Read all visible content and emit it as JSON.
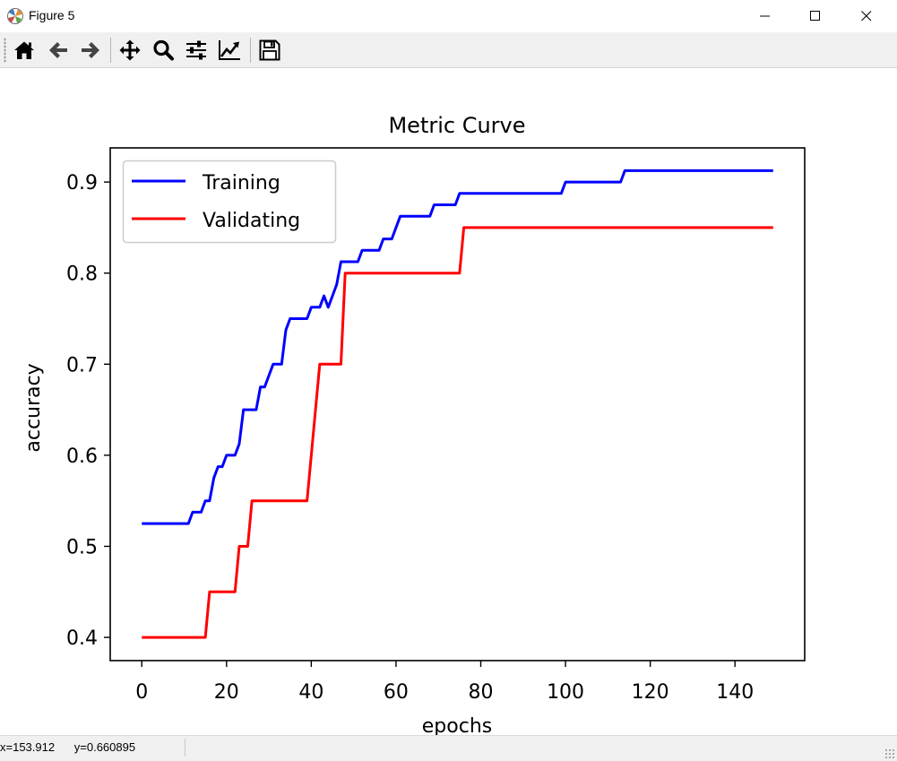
{
  "window": {
    "title": "Figure 5",
    "minimize_icon": "minimize-icon",
    "maximize_icon": "maximize-icon",
    "close_icon": "close-icon"
  },
  "toolbar": {
    "buttons": [
      {
        "name": "home-button",
        "icon": "home-icon"
      },
      {
        "name": "back-button",
        "icon": "arrow-left-icon"
      },
      {
        "name": "forward-button",
        "icon": "arrow-right-icon"
      },
      {
        "name": "pan-button",
        "icon": "move-icon"
      },
      {
        "name": "zoom-button",
        "icon": "search-icon"
      },
      {
        "name": "configure-subplots-button",
        "icon": "sliders-icon"
      },
      {
        "name": "edit-axis-button",
        "icon": "line-chart-icon"
      },
      {
        "name": "save-button",
        "icon": "save-icon"
      }
    ]
  },
  "status": {
    "x_readout": "x=153.912",
    "y_readout": "y=0.660895"
  },
  "chart_data": {
    "type": "line",
    "title": "Metric Curve",
    "xlabel": "epochs",
    "ylabel": "accuracy",
    "xlim": [
      -7.45,
      156.45
    ],
    "ylim": [
      0.3745,
      0.9375
    ],
    "xticks": [
      0,
      20,
      40,
      60,
      80,
      100,
      120,
      140
    ],
    "yticks": [
      0.4,
      0.5,
      0.6,
      0.7,
      0.8,
      0.9
    ],
    "ytick_labels": [
      "0.4",
      "0.5",
      "0.6",
      "0.7",
      "0.8",
      "0.9"
    ],
    "legend": {
      "placement": "upper-left"
    },
    "grid": false,
    "series": [
      {
        "name": "Training",
        "color": "#0000ff",
        "x": [
          0,
          11,
          12,
          14,
          15,
          16,
          17,
          18,
          19,
          20,
          21,
          22,
          23,
          24,
          25,
          26,
          27,
          28,
          29,
          30,
          31,
          32,
          33,
          34,
          35,
          36,
          37,
          38,
          39,
          40,
          41,
          42,
          43,
          44,
          45,
          46,
          47,
          48,
          49,
          50,
          51,
          52,
          53,
          54,
          55,
          56,
          57,
          58,
          59,
          60,
          61,
          62,
          63,
          64,
          65,
          66,
          67,
          68,
          69,
          70,
          71,
          72,
          73,
          74,
          75,
          76,
          77,
          78,
          80,
          90,
          99,
          100,
          105,
          113,
          114,
          120,
          130,
          149
        ],
        "y": [
          0.525,
          0.525,
          0.5375,
          0.5375,
          0.55,
          0.55,
          0.575,
          0.5875,
          0.5875,
          0.6,
          0.6,
          0.6,
          0.6125,
          0.65,
          0.65,
          0.65,
          0.65,
          0.675,
          0.675,
          0.6875,
          0.7,
          0.7,
          0.7,
          0.7375,
          0.75,
          0.75,
          0.75,
          0.75,
          0.75,
          0.7625,
          0.7625,
          0.7625,
          0.775,
          0.7625,
          0.775,
          0.7875,
          0.8125,
          0.8125,
          0.8125,
          0.8125,
          0.8125,
          0.825,
          0.825,
          0.825,
          0.825,
          0.825,
          0.8375,
          0.8375,
          0.8375,
          0.85,
          0.8625,
          0.8625,
          0.8625,
          0.8625,
          0.8625,
          0.8625,
          0.8625,
          0.8625,
          0.875,
          0.875,
          0.875,
          0.875,
          0.875,
          0.875,
          0.8875,
          0.8875,
          0.8875,
          0.8875,
          0.8875,
          0.8875,
          0.8875,
          0.9,
          0.9,
          0.9,
          0.9125,
          0.9125,
          0.9125,
          0.9125
        ]
      },
      {
        "name": "Validating",
        "color": "#ff0000",
        "x": [
          0,
          15,
          16,
          22,
          23,
          24,
          25,
          26,
          39,
          40,
          41,
          42,
          44,
          47,
          48,
          75,
          76,
          100,
          149
        ],
        "y": [
          0.4,
          0.4,
          0.45,
          0.45,
          0.5,
          0.5,
          0.5,
          0.55,
          0.55,
          0.6,
          0.65,
          0.7,
          0.7,
          0.7,
          0.8,
          0.8,
          0.85,
          0.85,
          0.85
        ]
      }
    ]
  }
}
